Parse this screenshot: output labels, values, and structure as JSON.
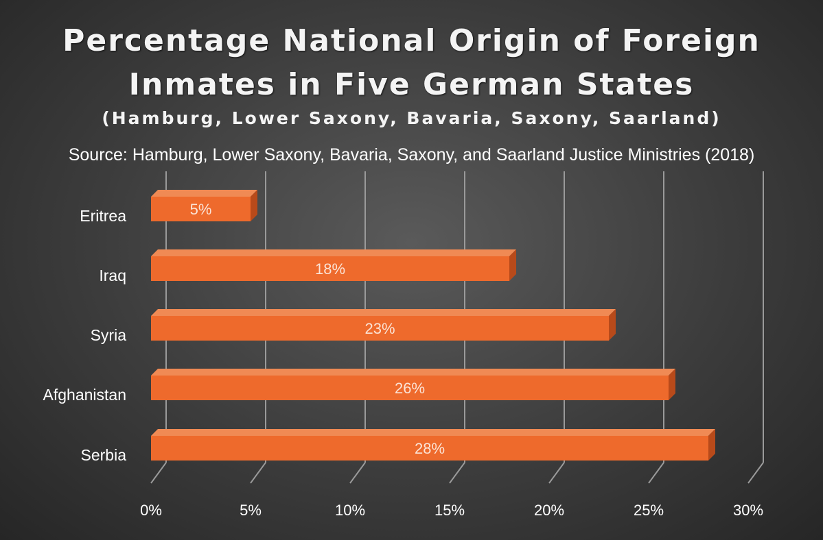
{
  "chart_data": {
    "type": "bar",
    "orientation": "horizontal",
    "title_line1": "Percentage National Origin of Foreign",
    "title_line2": "Inmates in Five German States",
    "subtitle": "(Hamburg, Lower Saxony, Bavaria, Saxony, Saarland)",
    "source": "Source: Hamburg, Lower Saxony, Bavaria, Saxony, and Saarland Justice Ministries (2018)",
    "categories": [
      "Eritrea",
      "Iraq",
      "Syria",
      "Afghanistan",
      "Serbia"
    ],
    "values": [
      5,
      18,
      23,
      26,
      28
    ],
    "data_labels": [
      "5%",
      "18%",
      "23%",
      "26%",
      "28%"
    ],
    "x_ticks": [
      0,
      5,
      10,
      15,
      20,
      25,
      30
    ],
    "x_tick_labels": [
      "0%",
      "5%",
      "10%",
      "15%",
      "20%",
      "25%",
      "30%"
    ],
    "xlim": [
      0,
      30
    ],
    "grid": true,
    "legend": "none",
    "colors": {
      "bar_front": "#ee6a2c",
      "bar_top": "#f08a54",
      "bar_side": "#b84a1a",
      "grid": "#9a9a9a"
    }
  }
}
